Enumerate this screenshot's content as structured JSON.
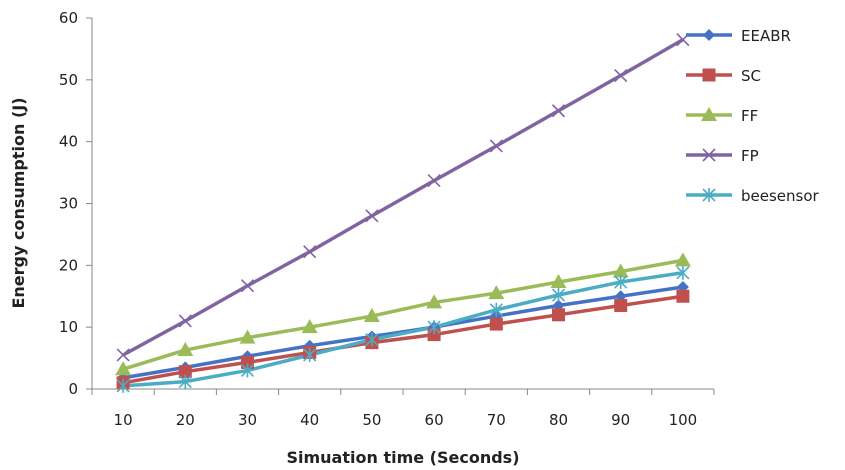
{
  "chart_data": {
    "type": "line",
    "xlabel": "Simuation time (Seconds)",
    "ylabel": "Energy consumption (J)",
    "x": [
      10,
      20,
      30,
      40,
      50,
      60,
      70,
      80,
      90,
      100
    ],
    "x_tick_labels": [
      "10",
      "20",
      "30",
      "40",
      "50",
      "60",
      "70",
      "80",
      "90",
      "100"
    ],
    "ylim": [
      0,
      60
    ],
    "y_ticks": [
      0,
      10,
      20,
      30,
      40,
      50,
      60
    ],
    "y_tick_labels": [
      "0",
      "10",
      "20",
      "30",
      "40",
      "50",
      "60"
    ],
    "grid": false,
    "legend_position": "right",
    "series": [
      {
        "name": "EEABR",
        "color": "#4472C4",
        "marker": "diamond",
        "values": [
          1.8,
          3.5,
          5.3,
          7.0,
          8.5,
          10.0,
          11.8,
          13.5,
          15.0,
          16.5
        ]
      },
      {
        "name": "SC",
        "color": "#C0504D",
        "marker": "square",
        "values": [
          1.0,
          2.8,
          4.3,
          5.9,
          7.5,
          8.8,
          10.5,
          12.0,
          13.5,
          15.0
        ]
      },
      {
        "name": "FF",
        "color": "#9BBB59",
        "marker": "triangle",
        "values": [
          3.2,
          6.3,
          8.3,
          10.0,
          11.8,
          14.0,
          15.5,
          17.3,
          19.0,
          20.8
        ]
      },
      {
        "name": "FP",
        "color": "#8064A2",
        "marker": "x",
        "values": [
          5.5,
          11.0,
          16.7,
          22.2,
          28.0,
          33.7,
          39.3,
          45.0,
          50.7,
          56.5
        ]
      },
      {
        "name": "beesensor",
        "color": "#4BACC6",
        "marker": "star",
        "values": [
          0.5,
          1.2,
          3.0,
          5.5,
          8.0,
          10.0,
          12.8,
          15.2,
          17.3,
          18.8
        ]
      }
    ]
  }
}
